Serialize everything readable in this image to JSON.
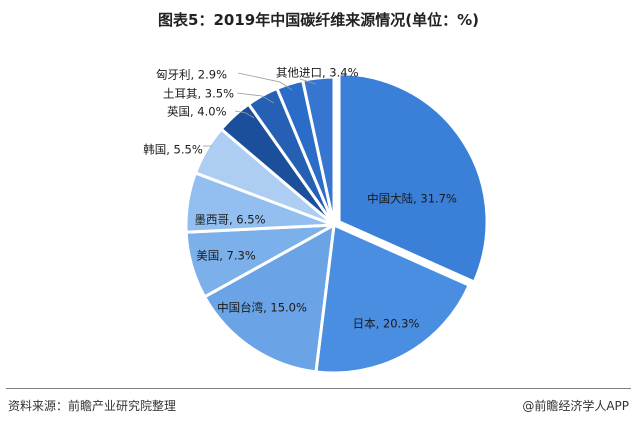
{
  "chart_data": {
    "type": "pie",
    "title": "图表5：2019年中国碳纤维来源情况(单位：%)",
    "slices": [
      {
        "label": "中国大陆, 31.7%",
        "value": 31.7,
        "color": "#3a7fd8",
        "label_color": "#1a1a1a"
      },
      {
        "label": "日本, 20.3%",
        "value": 20.3,
        "color": "#4a8ee2",
        "label_color": "#1a1a1a"
      },
      {
        "label": "中国台湾, 15.0%",
        "value": 15.0,
        "color": "#6aa3e6",
        "label_color": "#1a1a1a"
      },
      {
        "label": "美国, 7.3%",
        "value": 7.3,
        "color": "#7cb0ea",
        "label_color": "#1a1a1a"
      },
      {
        "label": "墨西哥, 6.5%",
        "value": 6.5,
        "color": "#92bff0",
        "label_color": "#1a1a1a"
      },
      {
        "label": "韩国, 5.5%",
        "value": 5.5,
        "color": "#adcdf3",
        "label_color": "#1a1a1a"
      },
      {
        "label": "英国, 4.0%",
        "value": 4.0,
        "color": "#1b4f9c",
        "label_color": "#1a1a1a"
      },
      {
        "label": "土耳其, 3.5%",
        "value": 3.5,
        "color": "#2560b5",
        "label_color": "#1a1a1a"
      },
      {
        "label": "匈牙利, 2.9%",
        "value": 2.9,
        "color": "#2a6cc8",
        "label_color": "#1a1a1a"
      },
      {
        "label": "其他进口, 3.4%",
        "value": 3.4,
        "color": "#3676d1",
        "label_color": "#1a1a1a"
      }
    ]
  },
  "footer": {
    "source": "资料来源：前瞻产业研究院整理",
    "brand": "@前瞻经济学人APP"
  }
}
